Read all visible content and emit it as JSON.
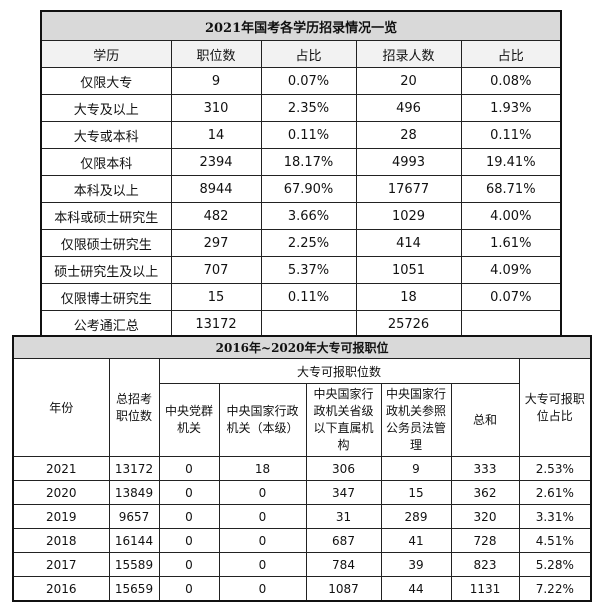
{
  "table1": {
    "title": "2021年国考各学历招录情况一览",
    "header": [
      "学历",
      "职位数",
      "占比",
      "招录人数",
      "占比"
    ],
    "rows": [
      [
        "仅限大专",
        "9",
        "0.07%",
        "20",
        "0.08%"
      ],
      [
        "大专及以上",
        "310",
        "2.35%",
        "496",
        "1.93%"
      ],
      [
        "大专或本科",
        "14",
        "0.11%",
        "28",
        "0.11%"
      ],
      [
        "仅限本科",
        "2394",
        "18.17%",
        "4993",
        "19.41%"
      ],
      [
        "本科及以上",
        "8944",
        "67.90%",
        "17677",
        "68.71%"
      ],
      [
        "本科或硕士研究生",
        "482",
        "3.66%",
        "1029",
        "4.00%"
      ],
      [
        "仅限硕士研究生",
        "297",
        "2.25%",
        "414",
        "1.61%"
      ],
      [
        "硕士研究生及以上",
        "707",
        "5.37%",
        "1051",
        "4.09%"
      ],
      [
        "仅限博士研究生",
        "15",
        "0.11%",
        "18",
        "0.07%"
      ]
    ],
    "total": {
      "label": "公考通汇总",
      "positions": "13172",
      "recruits": "25726"
    }
  },
  "table2": {
    "title": "2016年~2020年大专可报职位",
    "year_header": "年份",
    "total_header": "总招考职位数",
    "group_header": "大专可报职位数",
    "sub_headers": [
      "中央党群机关",
      "中央国家行政机关（本级）",
      "中央国家行政机关省级以下直属机构",
      "中央国家行政机关参照公务员法管理",
      "总和"
    ],
    "ratio_header": "大专可报职位占比",
    "rows": [
      [
        "2021",
        "13172",
        "0",
        "18",
        "306",
        "9",
        "333",
        "2.53%"
      ],
      [
        "2020",
        "13849",
        "0",
        "0",
        "347",
        "15",
        "362",
        "2.61%"
      ],
      [
        "2019",
        "9657",
        "0",
        "0",
        "31",
        "289",
        "320",
        "3.31%"
      ],
      [
        "2018",
        "16144",
        "0",
        "0",
        "687",
        "41",
        "728",
        "4.51%"
      ],
      [
        "2017",
        "15589",
        "0",
        "0",
        "784",
        "39",
        "823",
        "5.28%"
      ],
      [
        "2016",
        "15659",
        "0",
        "0",
        "1087",
        "44",
        "1131",
        "7.22%"
      ]
    ]
  }
}
